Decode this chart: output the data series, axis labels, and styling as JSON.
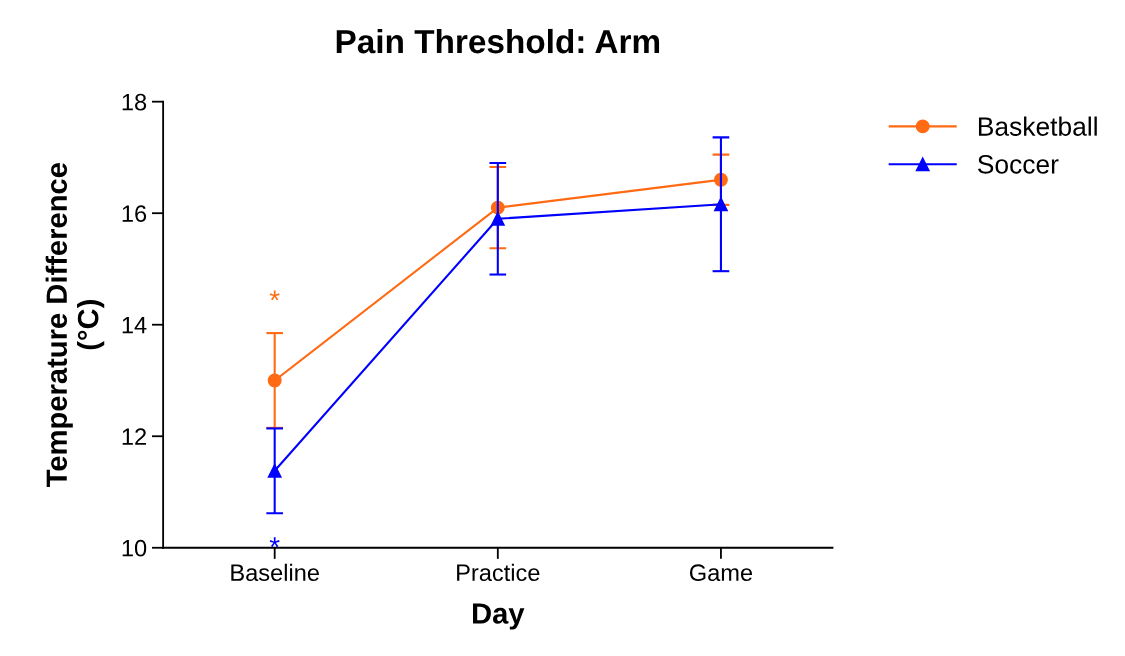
{
  "chart_data": {
    "type": "line",
    "title": "Pain Threshold: Arm",
    "xlabel": "Day",
    "ylabel": "Temperature Difference\n(°C)",
    "categories": [
      "Baseline",
      "Practice",
      "Game"
    ],
    "series": [
      {
        "name": "Basketball",
        "color": "#ff6a13",
        "marker": "circle",
        "values": [
          13.0,
          16.1,
          16.6
        ],
        "errors": [
          0.85,
          0.73,
          0.45
        ]
      },
      {
        "name": "Soccer",
        "color": "#0000ff",
        "marker": "triangle",
        "values": [
          11.38,
          15.9,
          16.16
        ],
        "errors": [
          0.76,
          1.0,
          1.2
        ]
      }
    ],
    "annotations": [
      "*",
      "*"
    ],
    "ylim": [
      10,
      18
    ],
    "yticks": [
      10,
      12,
      14,
      16,
      18
    ],
    "grid": false,
    "legend": "top right",
    "line_style": "solid"
  }
}
